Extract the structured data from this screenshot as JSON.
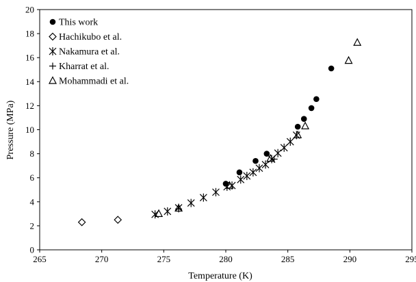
{
  "chart_data": {
    "type": "scatter",
    "xlabel": "Temperature (K)",
    "ylabel": "Pressure (MPa)",
    "xlim": [
      265,
      295
    ],
    "ylim": [
      0,
      20
    ],
    "xticks": [
      265,
      270,
      275,
      280,
      285,
      290,
      295
    ],
    "yticks": [
      0,
      2,
      4,
      6,
      8,
      10,
      12,
      14,
      16,
      18,
      20
    ],
    "grid": false,
    "legend_position": "top-left",
    "series": [
      {
        "name": "This work",
        "marker": "filled-circle",
        "points": [
          [
            280.0,
            5.5
          ],
          [
            281.1,
            6.45
          ],
          [
            282.4,
            7.4
          ],
          [
            283.3,
            8.0
          ],
          [
            285.8,
            10.25
          ],
          [
            286.3,
            10.9
          ],
          [
            286.9,
            11.8
          ],
          [
            287.3,
            12.55
          ],
          [
            288.5,
            15.1
          ]
        ]
      },
      {
        "name": "Hachikubo et al.",
        "marker": "open-diamond",
        "points": [
          [
            268.4,
            2.3
          ],
          [
            271.3,
            2.5
          ]
        ]
      },
      {
        "name": "Nakamura et al.",
        "marker": "asterisk",
        "points": [
          [
            274.3,
            2.95
          ],
          [
            275.3,
            3.2
          ],
          [
            276.2,
            3.5
          ],
          [
            277.2,
            3.9
          ],
          [
            278.2,
            4.35
          ],
          [
            279.2,
            4.8
          ],
          [
            280.1,
            5.25
          ],
          [
            280.5,
            5.35
          ],
          [
            281.2,
            5.85
          ],
          [
            281.7,
            6.15
          ],
          [
            282.2,
            6.45
          ],
          [
            282.7,
            6.8
          ],
          [
            283.2,
            7.1
          ],
          [
            283.7,
            7.55
          ],
          [
            284.2,
            8.05
          ],
          [
            284.7,
            8.5
          ],
          [
            285.2,
            9.0
          ],
          [
            285.7,
            9.55
          ]
        ]
      },
      {
        "name": "Kharrat et al.",
        "marker": "plus",
        "points": [
          [
            276.2,
            3.4
          ],
          [
            283.9,
            7.55
          ]
        ]
      },
      {
        "name": "Mohammadi et al.",
        "marker": "open-triangle",
        "points": [
          [
            274.6,
            3.0
          ],
          [
            276.2,
            3.45
          ],
          [
            280.3,
            5.35
          ],
          [
            283.6,
            7.6
          ],
          [
            285.8,
            9.55
          ],
          [
            286.4,
            10.3
          ],
          [
            289.9,
            15.75
          ],
          [
            290.6,
            17.25
          ]
        ]
      }
    ]
  }
}
